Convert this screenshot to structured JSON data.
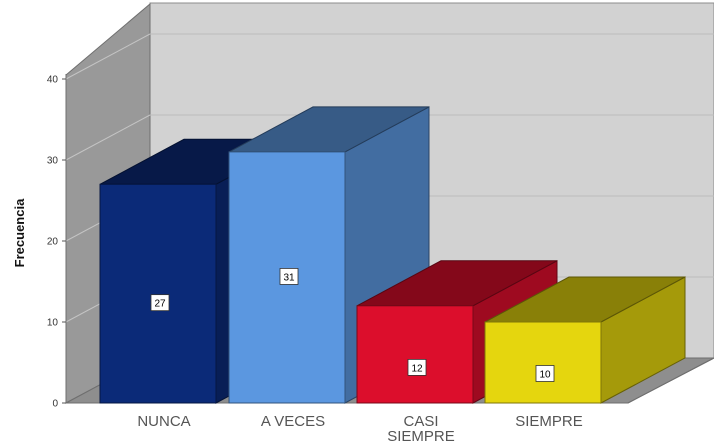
{
  "chart_data": {
    "type": "bar",
    "style": "3d-bar",
    "categories": [
      "NUNCA",
      "A VECES",
      "CASI\nSIEMPRE",
      "SIEMPRE"
    ],
    "values": [
      27,
      31,
      12,
      10
    ],
    "data_labels": [
      "27",
      "31",
      "12",
      "10"
    ],
    "title": "",
    "xlabel": "",
    "ylabel": "Frecuencia",
    "ylim": [
      0,
      40
    ],
    "yticks": [
      "0",
      "10",
      "20",
      "30",
      "40"
    ],
    "grid": true,
    "legend": "none",
    "colors": [
      "#0b2a78",
      "#5b97e0",
      "#dc0e2c",
      "#e5d60e"
    ]
  }
}
